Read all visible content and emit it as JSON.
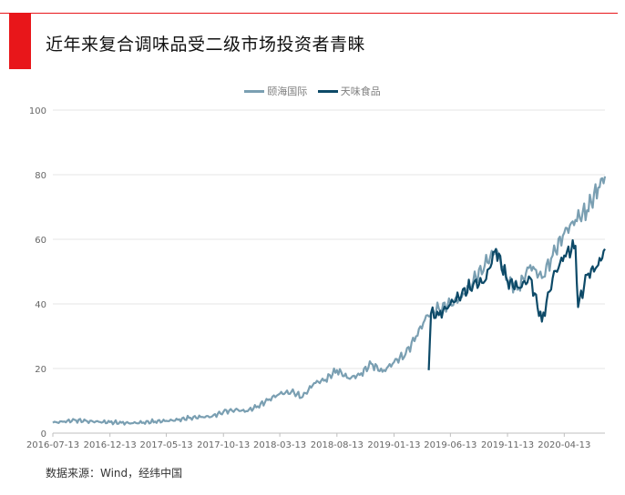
{
  "header": {
    "title": "近年来复合调味品受二级市场投资者青睐",
    "accent_color": "#e8161a"
  },
  "footer": {
    "source": "数据来源：Wind，经纬中国"
  },
  "chart_data": {
    "type": "line",
    "title": "",
    "xlabel": "",
    "ylabel": "",
    "ylim": [
      0,
      100
    ],
    "yticks": [
      0,
      20,
      40,
      60,
      80,
      100
    ],
    "x_start": "2016-07-13",
    "x_end": "2020-07-31",
    "xticks": [
      "2016-07-13",
      "2016-12-13",
      "2017-05-13",
      "2017-10-13",
      "2018-03-13",
      "2018-08-13",
      "2019-01-13",
      "2019-06-13",
      "2019-11-13",
      "2020-04-13"
    ],
    "grid": "horizontal",
    "legend": "top-center",
    "series": [
      {
        "name": "颐海国际",
        "color": "#7a9fb2",
        "points": [
          [
            "2016-07-13",
            3.2
          ],
          [
            "2016-08-13",
            3.6
          ],
          [
            "2016-09-13",
            4.0
          ],
          [
            "2016-10-13",
            3.7
          ],
          [
            "2016-11-13",
            3.5
          ],
          [
            "2016-12-13",
            3.4
          ],
          [
            "2017-01-13",
            3.2
          ],
          [
            "2017-02-13",
            3.1
          ],
          [
            "2017-03-13",
            3.3
          ],
          [
            "2017-04-13",
            3.6
          ],
          [
            "2017-05-13",
            3.8
          ],
          [
            "2017-06-13",
            4.1
          ],
          [
            "2017-07-13",
            4.7
          ],
          [
            "2017-08-13",
            5.0
          ],
          [
            "2017-09-13",
            5.2
          ],
          [
            "2017-10-13",
            6.6
          ],
          [
            "2017-11-13",
            7.2
          ],
          [
            "2017-12-13",
            6.8
          ],
          [
            "2018-01-13",
            8.3
          ],
          [
            "2018-02-13",
            10.5
          ],
          [
            "2018-03-13",
            12.2
          ],
          [
            "2018-04-13",
            12.8
          ],
          [
            "2018-05-13",
            11.2
          ],
          [
            "2018-06-13",
            15.5
          ],
          [
            "2018-07-13",
            16.5
          ],
          [
            "2018-08-13",
            19.5
          ],
          [
            "2018-09-13",
            17.0
          ],
          [
            "2018-10-13",
            18.0
          ],
          [
            "2018-11-13",
            21.5
          ],
          [
            "2018-12-13",
            19.0
          ],
          [
            "2019-01-13",
            22.0
          ],
          [
            "2019-02-13",
            24.5
          ],
          [
            "2019-03-13",
            30.0
          ],
          [
            "2019-04-13",
            36.5
          ],
          [
            "2019-05-13",
            38.5
          ],
          [
            "2019-06-13",
            40.0
          ],
          [
            "2019-07-13",
            42.0
          ],
          [
            "2019-08-13",
            47.0
          ],
          [
            "2019-09-13",
            52.0
          ],
          [
            "2019-10-13",
            57.0
          ],
          [
            "2019-11-13",
            47.0
          ],
          [
            "2019-12-13",
            45.0
          ],
          [
            "2020-01-13",
            52.0
          ],
          [
            "2020-02-13",
            48.0
          ],
          [
            "2020-03-13",
            55.0
          ],
          [
            "2020-04-13",
            62.0
          ],
          [
            "2020-05-13",
            66.0
          ],
          [
            "2020-06-13",
            69.0
          ],
          [
            "2020-07-13",
            76.0
          ],
          [
            "2020-07-31",
            79.5
          ]
        ]
      },
      {
        "name": "天味食品",
        "color": "#0d4a68",
        "points": [
          [
            "2019-04-16",
            19.5
          ],
          [
            "2019-04-22",
            37.0
          ],
          [
            "2019-05-13",
            36.5
          ],
          [
            "2019-06-13",
            40.0
          ],
          [
            "2019-07-13",
            43.0
          ],
          [
            "2019-08-13",
            46.0
          ],
          [
            "2019-09-13",
            47.0
          ],
          [
            "2019-10-13",
            57.0
          ],
          [
            "2019-11-13",
            47.0
          ],
          [
            "2019-12-13",
            45.0
          ],
          [
            "2020-01-13",
            48.0
          ],
          [
            "2020-02-13",
            34.5
          ],
          [
            "2020-03-13",
            48.0
          ],
          [
            "2020-04-13",
            55.0
          ],
          [
            "2020-05-13",
            58.0
          ],
          [
            "2020-05-20",
            39.0
          ],
          [
            "2020-06-13",
            49.0
          ],
          [
            "2020-07-13",
            52.0
          ],
          [
            "2020-07-31",
            57.0
          ]
        ]
      }
    ]
  }
}
